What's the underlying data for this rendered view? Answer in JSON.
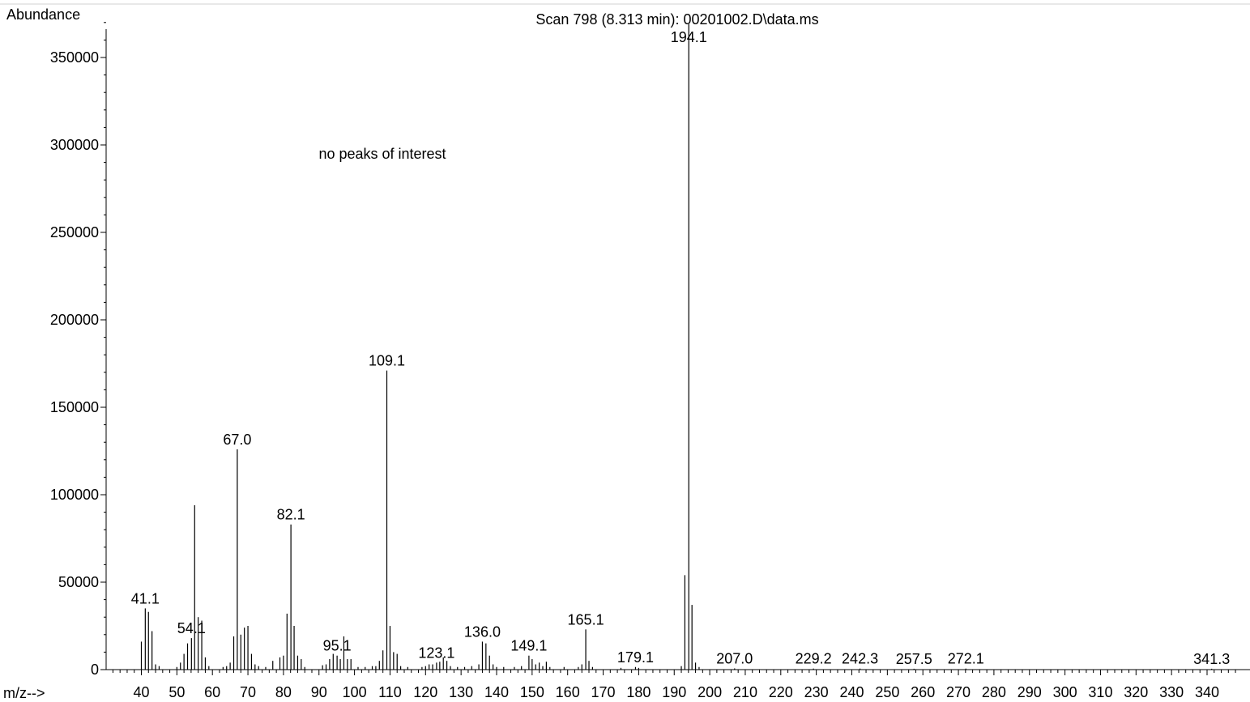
{
  "chart_data": {
    "type": "bar",
    "title": "Scan 798 (8.313 min): 00201002.D\\data.ms",
    "ylabel": "Abundance",
    "xlabel": "m/z-->",
    "annotation": "no peaks of interest",
    "xlim": [
      32,
      348
    ],
    "ylim": [
      0,
      370000
    ],
    "x_ticks": [
      40,
      50,
      60,
      70,
      80,
      90,
      100,
      110,
      120,
      130,
      140,
      150,
      160,
      170,
      180,
      190,
      200,
      210,
      220,
      230,
      240,
      250,
      260,
      270,
      280,
      290,
      300,
      310,
      320,
      330,
      340
    ],
    "y_ticks": [
      0,
      50000,
      100000,
      150000,
      200000,
      250000,
      300000,
      350000
    ],
    "peaks": [
      {
        "mz": 40.0,
        "abundance": 16000
      },
      {
        "mz": 41.1,
        "abundance": 35000,
        "label": "41.1"
      },
      {
        "mz": 42.0,
        "abundance": 33000
      },
      {
        "mz": 43.0,
        "abundance": 22000
      },
      {
        "mz": 44.0,
        "abundance": 3000
      },
      {
        "mz": 45.0,
        "abundance": 2000
      },
      {
        "mz": 50.0,
        "abundance": 1500
      },
      {
        "mz": 51.0,
        "abundance": 4000
      },
      {
        "mz": 52.0,
        "abundance": 9000
      },
      {
        "mz": 53.0,
        "abundance": 15000
      },
      {
        "mz": 54.1,
        "abundance": 18000,
        "label": "54.1"
      },
      {
        "mz": 55.0,
        "abundance": 94000
      },
      {
        "mz": 56.0,
        "abundance": 30000
      },
      {
        "mz": 57.0,
        "abundance": 28000
      },
      {
        "mz": 58.0,
        "abundance": 7000
      },
      {
        "mz": 59.0,
        "abundance": 2000
      },
      {
        "mz": 63.0,
        "abundance": 1500
      },
      {
        "mz": 64.0,
        "abundance": 2000
      },
      {
        "mz": 65.0,
        "abundance": 4000
      },
      {
        "mz": 66.0,
        "abundance": 19000
      },
      {
        "mz": 67.0,
        "abundance": 126000,
        "label": "67.0"
      },
      {
        "mz": 68.0,
        "abundance": 20000
      },
      {
        "mz": 69.0,
        "abundance": 24000
      },
      {
        "mz": 70.0,
        "abundance": 25000
      },
      {
        "mz": 71.0,
        "abundance": 9000
      },
      {
        "mz": 72.0,
        "abundance": 3000
      },
      {
        "mz": 73.0,
        "abundance": 2000
      },
      {
        "mz": 75.0,
        "abundance": 1500
      },
      {
        "mz": 77.0,
        "abundance": 5000
      },
      {
        "mz": 79.0,
        "abundance": 7000
      },
      {
        "mz": 80.0,
        "abundance": 8000
      },
      {
        "mz": 81.0,
        "abundance": 32000
      },
      {
        "mz": 82.1,
        "abundance": 83000,
        "label": "82.1"
      },
      {
        "mz": 83.0,
        "abundance": 25000
      },
      {
        "mz": 84.0,
        "abundance": 8000
      },
      {
        "mz": 85.0,
        "abundance": 6000
      },
      {
        "mz": 86.0,
        "abundance": 1500
      },
      {
        "mz": 91.0,
        "abundance": 2500
      },
      {
        "mz": 92.0,
        "abundance": 3000
      },
      {
        "mz": 93.0,
        "abundance": 6000
      },
      {
        "mz": 94.0,
        "abundance": 9000
      },
      {
        "mz": 95.1,
        "abundance": 8000,
        "label": "95.1"
      },
      {
        "mz": 96.0,
        "abundance": 6000
      },
      {
        "mz": 97.0,
        "abundance": 19000
      },
      {
        "mz": 98.0,
        "abundance": 6000
      },
      {
        "mz": 99.0,
        "abundance": 6000
      },
      {
        "mz": 101.0,
        "abundance": 1500
      },
      {
        "mz": 103.0,
        "abundance": 1500
      },
      {
        "mz": 105.0,
        "abundance": 2000
      },
      {
        "mz": 106.0,
        "abundance": 2000
      },
      {
        "mz": 107.0,
        "abundance": 5000
      },
      {
        "mz": 108.0,
        "abundance": 11000
      },
      {
        "mz": 109.1,
        "abundance": 171000,
        "label": "109.1"
      },
      {
        "mz": 110.0,
        "abundance": 25000
      },
      {
        "mz": 111.0,
        "abundance": 10000
      },
      {
        "mz": 112.0,
        "abundance": 9000
      },
      {
        "mz": 113.0,
        "abundance": 2000
      },
      {
        "mz": 115.0,
        "abundance": 1500
      },
      {
        "mz": 119.0,
        "abundance": 1500
      },
      {
        "mz": 120.0,
        "abundance": 2000
      },
      {
        "mz": 121.0,
        "abundance": 3000
      },
      {
        "mz": 122.0,
        "abundance": 3000
      },
      {
        "mz": 123.1,
        "abundance": 4000,
        "label": "123.1"
      },
      {
        "mz": 124.0,
        "abundance": 4500
      },
      {
        "mz": 125.0,
        "abundance": 7000
      },
      {
        "mz": 126.0,
        "abundance": 5000
      },
      {
        "mz": 127.0,
        "abundance": 2000
      },
      {
        "mz": 129.0,
        "abundance": 1500
      },
      {
        "mz": 131.0,
        "abundance": 1500
      },
      {
        "mz": 133.0,
        "abundance": 2000
      },
      {
        "mz": 135.0,
        "abundance": 3000
      },
      {
        "mz": 136.0,
        "abundance": 16000,
        "label": "136.0"
      },
      {
        "mz": 137.0,
        "abundance": 15000
      },
      {
        "mz": 138.0,
        "abundance": 8000
      },
      {
        "mz": 139.0,
        "abundance": 3000
      },
      {
        "mz": 140.0,
        "abundance": 1500
      },
      {
        "mz": 142.0,
        "abundance": 1500
      },
      {
        "mz": 145.0,
        "abundance": 1500
      },
      {
        "mz": 147.0,
        "abundance": 2000
      },
      {
        "mz": 149.1,
        "abundance": 8000,
        "label": "149.1"
      },
      {
        "mz": 150.0,
        "abundance": 6000
      },
      {
        "mz": 151.0,
        "abundance": 3000
      },
      {
        "mz": 152.0,
        "abundance": 4000
      },
      {
        "mz": 153.0,
        "abundance": 2000
      },
      {
        "mz": 154.0,
        "abundance": 4500
      },
      {
        "mz": 155.0,
        "abundance": 1500
      },
      {
        "mz": 159.0,
        "abundance": 1500
      },
      {
        "mz": 163.0,
        "abundance": 1500
      },
      {
        "mz": 164.0,
        "abundance": 3000
      },
      {
        "mz": 165.1,
        "abundance": 23000,
        "label": "165.1"
      },
      {
        "mz": 166.0,
        "abundance": 5000
      },
      {
        "mz": 167.0,
        "abundance": 1500
      },
      {
        "mz": 175.0,
        "abundance": 1000
      },
      {
        "mz": 179.1,
        "abundance": 1500,
        "label": "179.1"
      },
      {
        "mz": 180.0,
        "abundance": 1000
      },
      {
        "mz": 192.0,
        "abundance": 2000
      },
      {
        "mz": 193.0,
        "abundance": 54000
      },
      {
        "mz": 194.1,
        "abundance": 369000,
        "label": "194.1"
      },
      {
        "mz": 195.0,
        "abundance": 37000
      },
      {
        "mz": 196.0,
        "abundance": 4000
      },
      {
        "mz": 197.0,
        "abundance": 1500
      },
      {
        "mz": 207.0,
        "abundance": 700,
        "label": "207.0"
      },
      {
        "mz": 229.2,
        "abundance": 600,
        "label": "229.2"
      },
      {
        "mz": 242.3,
        "abundance": 600,
        "label": "242.3"
      },
      {
        "mz": 257.5,
        "abundance": 500,
        "label": "257.5"
      },
      {
        "mz": 272.1,
        "abundance": 600,
        "label": "272.1"
      },
      {
        "mz": 341.3,
        "abundance": 500,
        "label": "341.3"
      }
    ]
  }
}
